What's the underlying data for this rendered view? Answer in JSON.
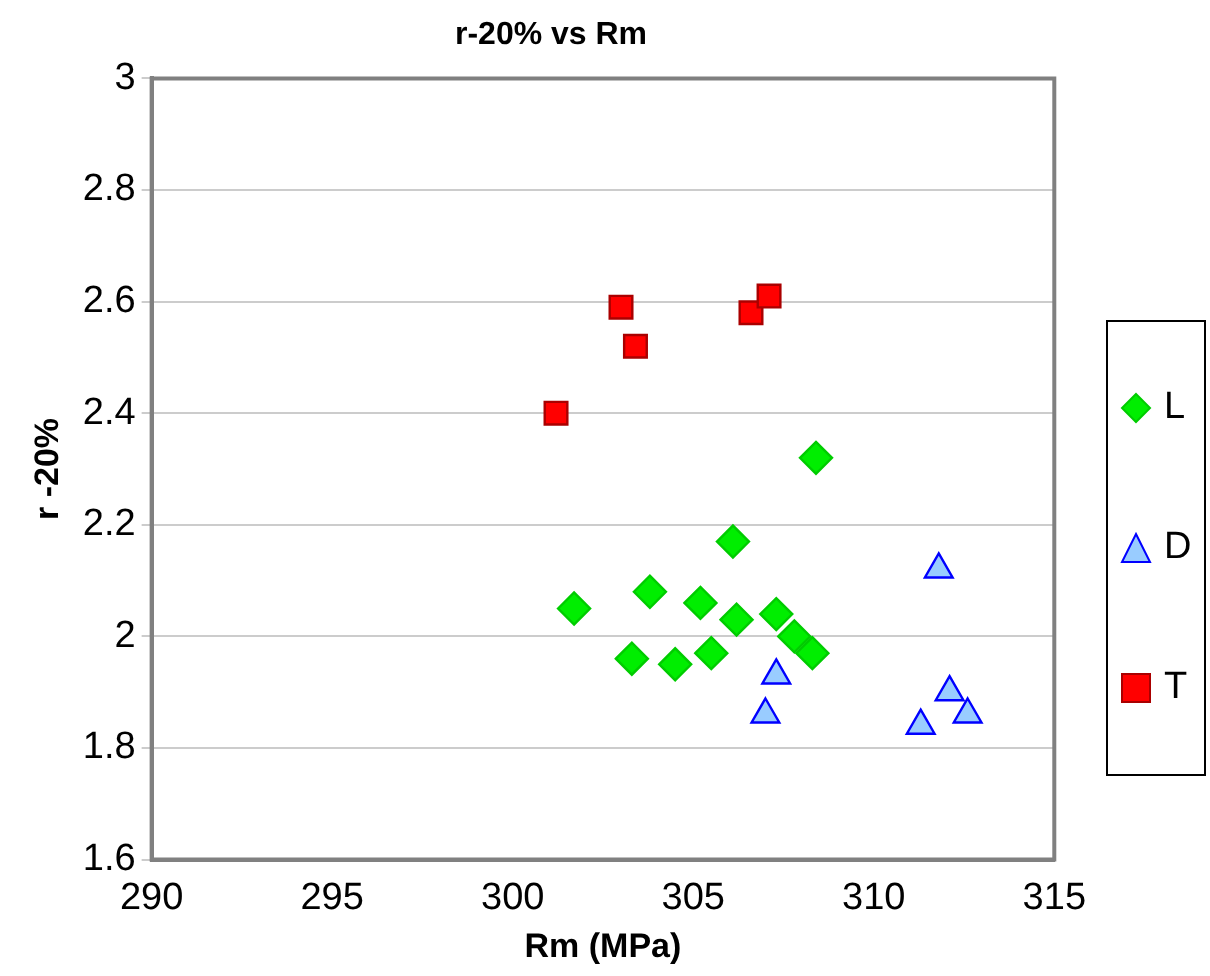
{
  "chart_data": {
    "type": "scatter",
    "title": "r-20% vs Rm",
    "xlabel": "Rm (MPa)",
    "ylabel": "r -20%",
    "xlim": [
      290,
      315
    ],
    "xticks": [
      290,
      295,
      300,
      305,
      310,
      315
    ],
    "ylim": [
      1.6,
      3
    ],
    "yticks": [
      1.6,
      1.8,
      2,
      2.2,
      2.4,
      2.6,
      2.8,
      3
    ],
    "grid": "y",
    "legend": "right",
    "series": [
      {
        "name": "L",
        "color": "#00ee00",
        "marker": "diamond",
        "x": [
          301.7,
          303.3,
          303.8,
          304.5,
          305.2,
          305.5,
          306.1,
          306.2,
          307.3,
          307.8,
          308.3,
          308.4
        ],
        "values": [
          2.05,
          1.96,
          2.08,
          1.95,
          2.06,
          1.97,
          2.17,
          2.03,
          2.04,
          2.0,
          1.97,
          2.32
        ]
      },
      {
        "name": "D",
        "color": "#99ccff",
        "marker": "triangle",
        "x": [
          307.0,
          307.3,
          311.3,
          311.8,
          312.1,
          312.6
        ],
        "values": [
          1.86,
          1.93,
          1.84,
          2.12,
          1.9,
          1.86
        ]
      },
      {
        "name": "T",
        "color": "#ff0000",
        "marker": "square",
        "x": [
          301.2,
          303.0,
          303.4,
          306.6,
          307.1
        ],
        "values": [
          2.4,
          2.59,
          2.52,
          2.58,
          2.61
        ]
      }
    ]
  }
}
